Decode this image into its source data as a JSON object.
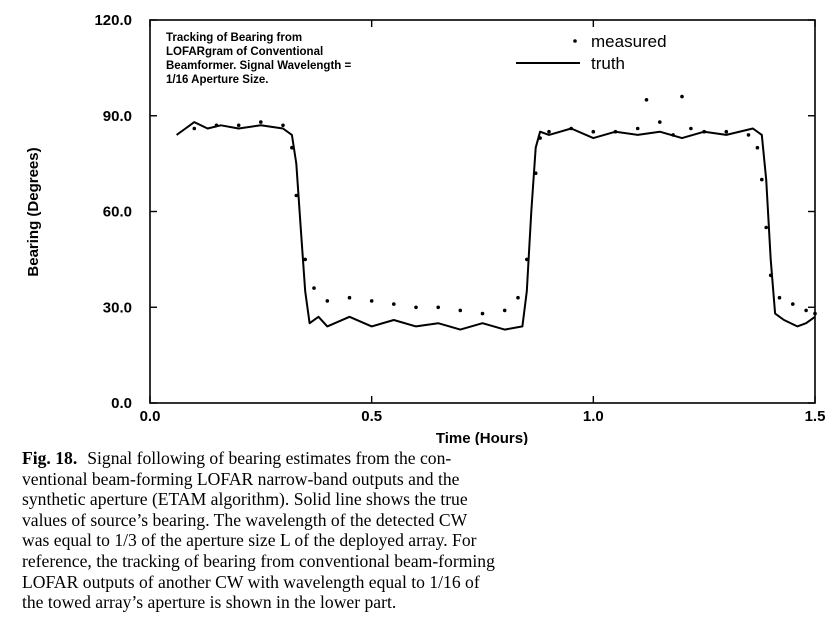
{
  "chart_data": {
    "type": "line",
    "title": "",
    "annotation": [
      "Tracking of Bearing from",
      "LOFARgram of Conventional",
      "Beamformer. Signal Wavelength =",
      "1/16 Aperture Size."
    ],
    "xlabel": "Time (Hours)",
    "ylabel": "Bearing (Degrees)",
    "xlim": [
      0.0,
      1.5
    ],
    "ylim": [
      0.0,
      120.0
    ],
    "x_ticks": [
      "0.0",
      "0.5",
      "1.0",
      "1.5"
    ],
    "y_ticks": [
      "0.0",
      "30.0",
      "60.0",
      "90.0",
      "120.0"
    ],
    "grid": false,
    "legend_position": "top-right",
    "series": [
      {
        "name": "measured",
        "style": "dots",
        "points": [
          [
            0.1,
            86
          ],
          [
            0.15,
            87
          ],
          [
            0.2,
            87
          ],
          [
            0.25,
            88
          ],
          [
            0.3,
            87
          ],
          [
            0.32,
            80
          ],
          [
            0.33,
            65
          ],
          [
            0.35,
            45
          ],
          [
            0.37,
            36
          ],
          [
            0.4,
            32
          ],
          [
            0.45,
            33
          ],
          [
            0.5,
            32
          ],
          [
            0.55,
            31
          ],
          [
            0.6,
            30
          ],
          [
            0.65,
            30
          ],
          [
            0.7,
            29
          ],
          [
            0.75,
            28
          ],
          [
            0.8,
            29
          ],
          [
            0.83,
            33
          ],
          [
            0.85,
            45
          ],
          [
            0.87,
            72
          ],
          [
            0.88,
            83
          ],
          [
            0.9,
            85
          ],
          [
            0.95,
            86
          ],
          [
            1.0,
            85
          ],
          [
            1.05,
            85
          ],
          [
            1.1,
            86
          ],
          [
            1.12,
            95
          ],
          [
            1.15,
            88
          ],
          [
            1.18,
            84
          ],
          [
            1.2,
            96
          ],
          [
            1.22,
            86
          ],
          [
            1.25,
            85
          ],
          [
            1.3,
            85
          ],
          [
            1.35,
            84
          ],
          [
            1.37,
            80
          ],
          [
            1.38,
            70
          ],
          [
            1.39,
            55
          ],
          [
            1.4,
            40
          ],
          [
            1.42,
            33
          ],
          [
            1.45,
            31
          ],
          [
            1.48,
            29
          ],
          [
            1.5,
            28
          ]
        ]
      },
      {
        "name": "truth",
        "style": "solid",
        "points": [
          [
            0.06,
            84
          ],
          [
            0.08,
            86
          ],
          [
            0.1,
            88
          ],
          [
            0.13,
            86
          ],
          [
            0.16,
            87
          ],
          [
            0.2,
            86
          ],
          [
            0.25,
            87
          ],
          [
            0.3,
            86
          ],
          [
            0.32,
            84
          ],
          [
            0.33,
            75
          ],
          [
            0.34,
            55
          ],
          [
            0.35,
            35
          ],
          [
            0.36,
            25
          ],
          [
            0.38,
            27
          ],
          [
            0.4,
            24
          ],
          [
            0.45,
            27
          ],
          [
            0.5,
            24
          ],
          [
            0.55,
            26
          ],
          [
            0.6,
            24
          ],
          [
            0.65,
            25
          ],
          [
            0.7,
            23
          ],
          [
            0.75,
            25
          ],
          [
            0.8,
            23
          ],
          [
            0.84,
            24
          ],
          [
            0.85,
            35
          ],
          [
            0.86,
            60
          ],
          [
            0.87,
            80
          ],
          [
            0.88,
            85
          ],
          [
            0.9,
            84
          ],
          [
            0.95,
            86
          ],
          [
            1.0,
            83
          ],
          [
            1.05,
            85
          ],
          [
            1.1,
            84
          ],
          [
            1.15,
            85
          ],
          [
            1.2,
            83
          ],
          [
            1.25,
            85
          ],
          [
            1.3,
            84
          ],
          [
            1.36,
            86
          ],
          [
            1.38,
            84
          ],
          [
            1.39,
            70
          ],
          [
            1.4,
            45
          ],
          [
            1.41,
            28
          ],
          [
            1.43,
            26
          ],
          [
            1.46,
            24
          ],
          [
            1.48,
            25
          ],
          [
            1.5,
            27
          ]
        ]
      }
    ]
  },
  "caption": {
    "fig_label": "Fig. 18.",
    "lines": [
      "Signal following of bearing estimates from the con-",
      "ventional beam-forming LOFAR narrow-band outputs and the",
      "synthetic aperture (ETAM algorithm). Solid line shows the true",
      "values of source’s bearing. The wavelength of the detected CW",
      "was equal to 1/3 of the aperture size L of the deployed array. For",
      "reference, the tracking of bearing from conventional beam-forming",
      "LOFAR outputs of another CW with wavelength equal to 1/16 of",
      "the towed array’s aperture is shown in the lower part."
    ]
  }
}
